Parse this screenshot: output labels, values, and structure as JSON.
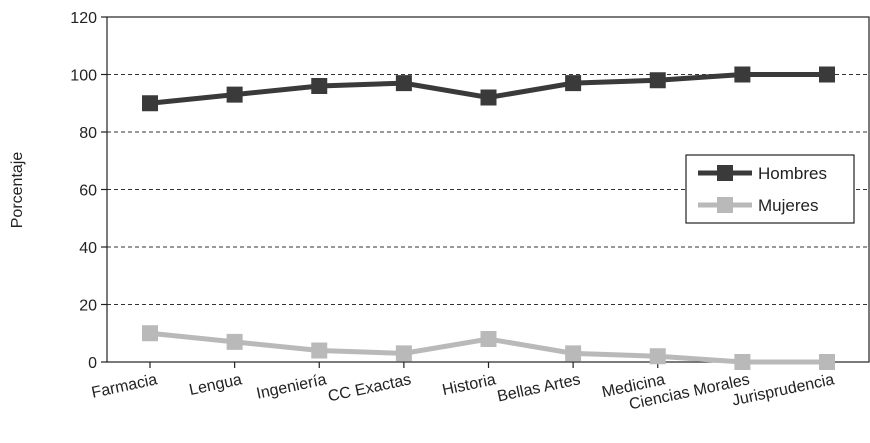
{
  "chart_data": {
    "type": "line",
    "title": "",
    "xlabel": "",
    "ylabel": "Porcentaje",
    "categories": [
      "Farmacia",
      "Lengua",
      "Ingeniería",
      "CC Exactas",
      "Historia",
      "Bellas Artes",
      "Medicina",
      "Ciencias Morales",
      "Jurisprudencia"
    ],
    "series": [
      {
        "name": "Hombres",
        "values": [
          90,
          93,
          96,
          97,
          92,
          97,
          98,
          100,
          100
        ],
        "color": "#3a3a3a"
      },
      {
        "name": "Mujeres",
        "values": [
          10,
          7,
          4,
          3,
          8,
          3,
          2,
          0,
          0
        ],
        "color": "#b9b9b9"
      }
    ],
    "ylim": [
      0,
      120
    ],
    "yticks": [
      0,
      20,
      40,
      60,
      80,
      100,
      120
    ],
    "grid": "horizontal dashed",
    "legend_position": "right"
  }
}
